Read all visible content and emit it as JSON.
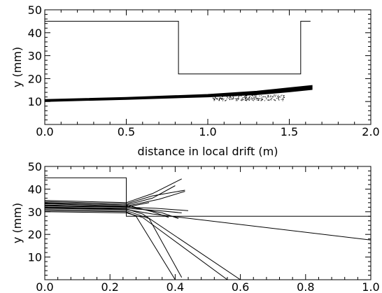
{
  "chart_data": [
    {
      "type": "line",
      "xlabel": "distance in local drift (m)",
      "ylabel": "y (mm)",
      "xlim": [
        0.0,
        2.0
      ],
      "ylim": [
        0,
        50
      ],
      "xticks": [
        "0.0",
        "0.5",
        "1.0",
        "1.5",
        "2.0"
      ],
      "yticks": [
        "10",
        "20",
        "30",
        "40",
        "50"
      ],
      "series": [
        {
          "role": "aperture",
          "points": [
            [
              0.0,
              45
            ],
            [
              0.82,
              45
            ],
            [
              0.82,
              22
            ],
            [
              1.57,
              22
            ],
            [
              1.57,
              45
            ],
            [
              1.63,
              45
            ]
          ]
        },
        {
          "role": "beam-band",
          "lower": [
            [
              0.0,
              10.0
            ],
            [
              0.5,
              10.9
            ],
            [
              1.0,
              12.0
            ],
            [
              1.3,
              13.0
            ],
            [
              1.5,
              14.2
            ],
            [
              1.64,
              15.2
            ]
          ],
          "upper": [
            [
              0.0,
              10.9
            ],
            [
              0.5,
              11.8
            ],
            [
              1.0,
              13.1
            ],
            [
              1.3,
              14.5
            ],
            [
              1.5,
              16.0
            ],
            [
              1.64,
              17.0
            ]
          ]
        },
        {
          "role": "scattered-particles",
          "xrange": [
            1.03,
            1.48
          ],
          "yrange": [
            10.5,
            13.0
          ]
        }
      ]
    },
    {
      "type": "line",
      "xlabel": "",
      "ylabel": "y (mm)",
      "xlim": [
        0.0,
        1.0
      ],
      "ylim": [
        0,
        50
      ],
      "xticks": [
        "0.0",
        "0.2",
        "0.4",
        "0.6",
        "0.8",
        "1.0"
      ],
      "yticks": [
        "10",
        "20",
        "30",
        "40",
        "50"
      ],
      "series": [
        {
          "role": "aperture",
          "points": [
            [
              0.0,
              45
            ],
            [
              0.25,
              45
            ],
            [
              0.25,
              28
            ],
            [
              1.0,
              28
            ]
          ]
        },
        {
          "role": "trajectories",
          "lines": [
            [
              [
                0.0,
                35.0
              ],
              [
                0.25,
                34.0
              ],
              [
                0.33,
                38.0
              ],
              [
                0.42,
                44.5
              ]
            ],
            [
              [
                0.0,
                34.5
              ],
              [
                0.25,
                33.5
              ],
              [
                0.33,
                37.0
              ],
              [
                0.43,
                39.5
              ]
            ],
            [
              [
                0.0,
                34.0
              ],
              [
                0.25,
                33.0
              ],
              [
                0.33,
                36.0
              ],
              [
                0.4,
                41.5
              ]
            ],
            [
              [
                0.0,
                33.5
              ],
              [
                0.25,
                32.5
              ],
              [
                0.35,
                35.5
              ],
              [
                0.43,
                39.0
              ]
            ],
            [
              [
                0.0,
                33.0
              ],
              [
                0.25,
                32.0
              ],
              [
                0.32,
                34.0
              ]
            ],
            [
              [
                0.0,
                32.5
              ],
              [
                0.25,
                32.0
              ],
              [
                0.34,
                31.5
              ],
              [
                0.44,
                30.5
              ]
            ],
            [
              [
                0.0,
                32.0
              ],
              [
                0.25,
                31.5
              ],
              [
                0.35,
                30.5
              ],
              [
                0.42,
                29.5
              ]
            ],
            [
              [
                0.0,
                31.5
              ],
              [
                0.25,
                31.0
              ],
              [
                0.33,
                29.0
              ],
              [
                1.0,
                17.5
              ]
            ],
            [
              [
                0.0,
                31.0
              ],
              [
                0.25,
                30.5
              ],
              [
                0.32,
                27.0
              ],
              [
                0.42,
                1.0
              ]
            ],
            [
              [
                0.0,
                30.5
              ],
              [
                0.25,
                30.0
              ],
              [
                0.28,
                28.0
              ],
              [
                0.4,
                0.0
              ]
            ],
            [
              [
                0.0,
                30.0
              ],
              [
                0.25,
                29.5
              ],
              [
                0.3,
                27.5
              ],
              [
                0.56,
                0.0
              ]
            ],
            [
              [
                0.0,
                31.8
              ],
              [
                0.25,
                31.2
              ],
              [
                0.3,
                29.0
              ],
              [
                0.6,
                0.0
              ]
            ],
            [
              [
                0.0,
                32.8
              ],
              [
                0.25,
                32.3
              ],
              [
                0.36,
                29.5
              ],
              [
                0.41,
                27.0
              ]
            ],
            [
              [
                0.0,
                33.8
              ],
              [
                0.25,
                33.0
              ],
              [
                0.33,
                30.0
              ],
              [
                0.38,
                27.5
              ]
            ]
          ]
        }
      ]
    }
  ]
}
